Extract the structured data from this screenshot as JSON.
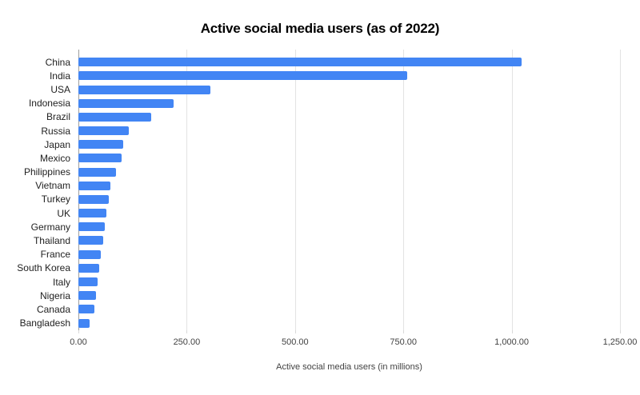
{
  "chart_data": {
    "type": "bar",
    "orientation": "horizontal",
    "title": "Active social media users (as of 2022)",
    "xlabel": "Active social media users (in millions)",
    "ylabel": "",
    "categories": [
      "China",
      "India",
      "USA",
      "Indonesia",
      "Brazil",
      "Russia",
      "Japan",
      "Mexico",
      "Philippines",
      "Vietnam",
      "Turkey",
      "UK",
      "Germany",
      "Thailand",
      "France",
      "South Korea",
      "Italy",
      "Nigeria",
      "Canada",
      "Bangladesh"
    ],
    "values": [
      1022,
      758,
      305,
      219,
      168,
      117,
      103,
      100,
      86,
      74,
      70,
      64,
      61,
      58,
      52,
      48,
      45,
      40,
      37,
      26
    ],
    "xlim": [
      0,
      1250
    ],
    "xticks": [
      0,
      250,
      500,
      750,
      1000,
      1250
    ],
    "xtick_labels": [
      "0.00",
      "250.00",
      "500.00",
      "750.00",
      "1,000.00",
      "1,250.00"
    ],
    "grid": "vertical-only",
    "legend": "none",
    "colors": {
      "bar": "#4285F4",
      "gridline": "#e3e3e3",
      "axis_line": "#9e9e9e",
      "title_text": "#000000",
      "category_text": "#222222",
      "tick_text": "#424242",
      "background": "#ffffff"
    }
  }
}
